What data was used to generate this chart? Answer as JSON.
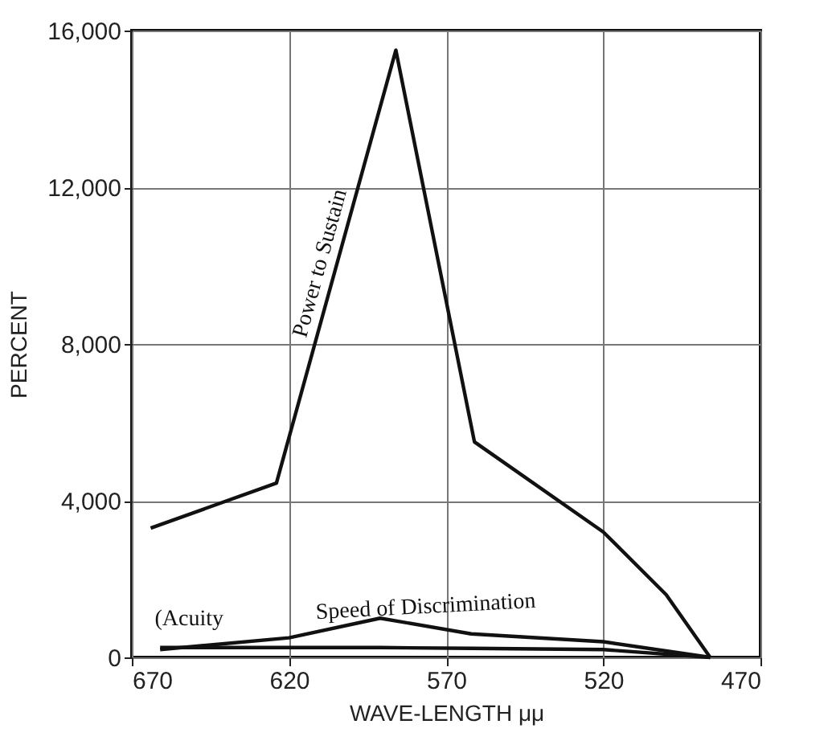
{
  "chart_data": {
    "type": "line",
    "xlabel": "WAVE-LENGTH μμ",
    "ylabel": "PERCENT",
    "xlim": [
      670,
      470
    ],
    "xticks": [
      670,
      620,
      570,
      520,
      470
    ],
    "ylim": [
      0,
      16000
    ],
    "yticks": [
      {
        "value": 0,
        "label": "0"
      },
      {
        "value": 4000,
        "label": "4,000"
      },
      {
        "value": 8000,
        "label": "8,000"
      },
      {
        "value": 12000,
        "label": "12,000"
      },
      {
        "value": 16000,
        "label": "16,000"
      }
    ],
    "grid": true,
    "legend": false,
    "marker": "none",
    "line_style": "solid",
    "series": [
      {
        "name": "Power to Sustain",
        "color": "#111111",
        "x": [
          664,
          624,
          586,
          561,
          520,
          500,
          486
        ],
        "values": [
          3300,
          4450,
          15500,
          5500,
          3200,
          1600,
          0
        ]
      },
      {
        "name": "Speed of Discrimination",
        "color": "#111111",
        "x": [
          661,
          620,
          591,
          562,
          520,
          486
        ],
        "values": [
          200,
          500,
          1000,
          600,
          400,
          0
        ]
      },
      {
        "name": "(Acuity",
        "color": "#111111",
        "x": [
          661,
          620,
          591,
          562,
          520,
          486
        ],
        "values": [
          250,
          250,
          250,
          230,
          200,
          0
        ]
      }
    ]
  }
}
